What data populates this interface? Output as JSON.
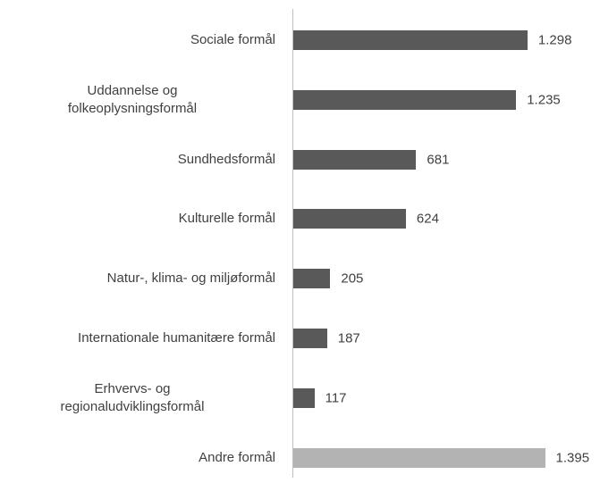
{
  "chart_data": {
    "type": "bar",
    "orientation": "horizontal",
    "categories": [
      "Sociale formål",
      "Uddannelse og\nfolkeoplysningsformål",
      "Sundhedsformål",
      "Kulturelle formål",
      "Natur-, klima- og miljøformål",
      "Internationale humanitære formål",
      "Erhvervs- og\nregionaludviklingsformål",
      "Andre formål"
    ],
    "values": [
      1298,
      1235,
      681,
      624,
      205,
      187,
      117,
      1395
    ],
    "value_labels": [
      "1.298",
      "1.235",
      "681",
      "624",
      "205",
      "187",
      "117",
      "1.395"
    ],
    "colors": [
      "#595959",
      "#595959",
      "#595959",
      "#595959",
      "#595959",
      "#595959",
      "#595959",
      "#b3b3b3"
    ]
  }
}
